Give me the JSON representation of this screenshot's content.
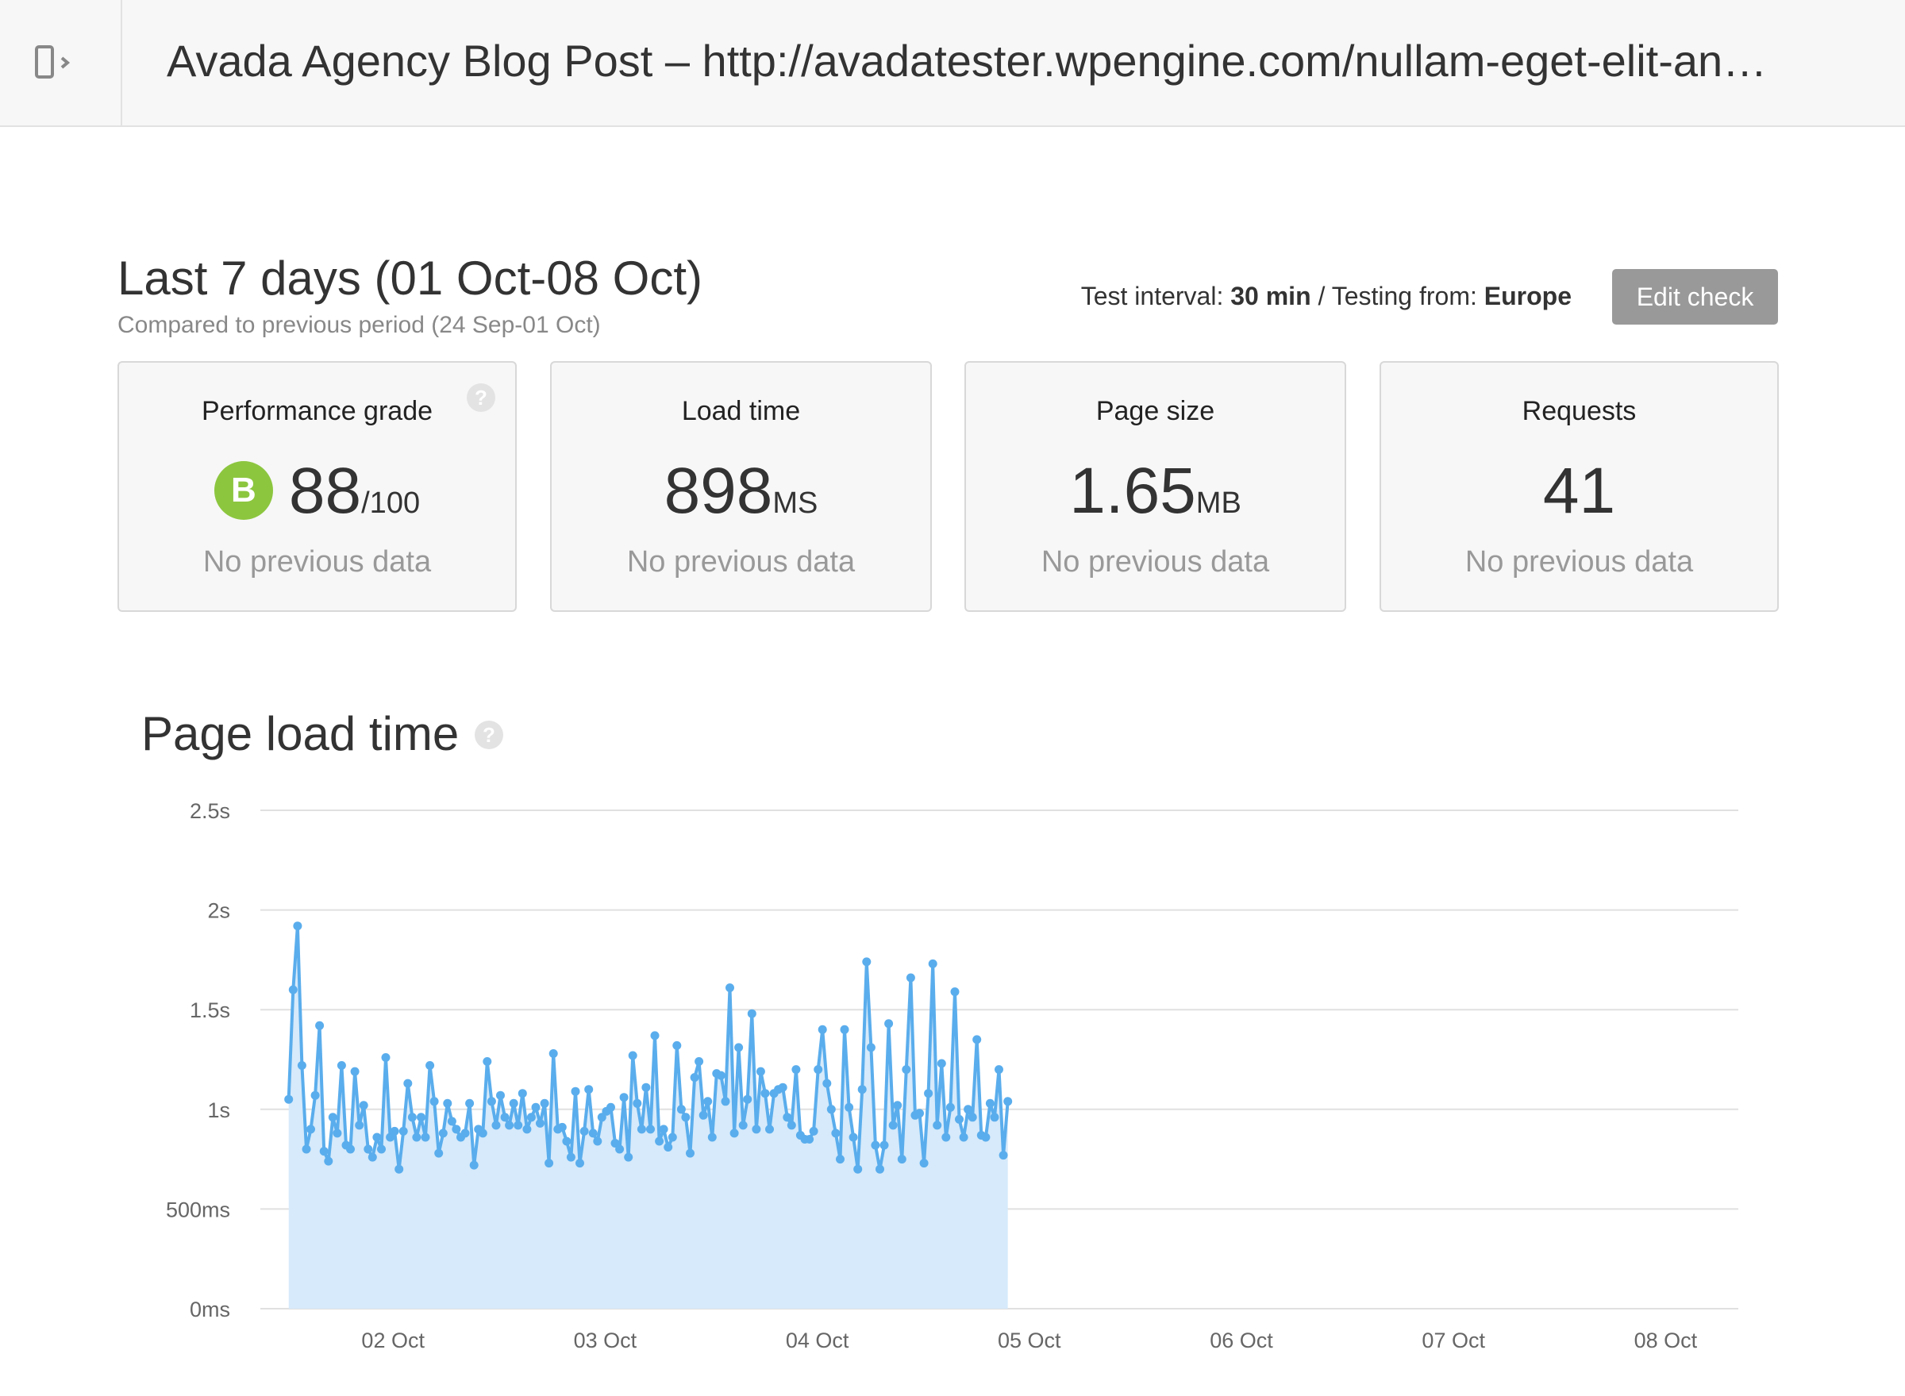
{
  "header": {
    "title": "Avada Agency Blog Post – http://avadatester.wpengine.com/nullam-eget-elit-an…",
    "toggle_icon": "sidebar-toggle-icon"
  },
  "period": {
    "title": "Last 7 days (01 Oct-08 Oct)",
    "subtitle": "Compared to previous period (24 Sep-01 Oct)"
  },
  "settings": {
    "interval_label": "Test interval:",
    "interval_value": "30 min",
    "separator": "/",
    "location_label": "Testing from:",
    "location_value": "Europe",
    "edit_button": "Edit check"
  },
  "cards": [
    {
      "label": "Performance grade",
      "grade_letter": "B",
      "value": "88",
      "unit": "/100",
      "prev": "No previous data",
      "grade_color": "#8cc63f"
    },
    {
      "label": "Load time",
      "value": "898",
      "unit": "MS",
      "prev": "No previous data"
    },
    {
      "label": "Page size",
      "value": "1.65",
      "unit": "MB",
      "prev": "No previous data"
    },
    {
      "label": "Requests",
      "value": "41",
      "unit": "",
      "prev": "No previous data"
    }
  ],
  "help_icon_glyph": "?",
  "chart_title": "Page load time",
  "colors": {
    "line": "#5aadec",
    "fill": "#d6eafb",
    "grid": "#e0e0e0"
  },
  "chart_data": {
    "type": "area",
    "title": "Page load time",
    "xlabel": "",
    "ylabel": "",
    "ylim": [
      0,
      2.5
    ],
    "y_ticks": [
      {
        "value": 0,
        "label": "0ms"
      },
      {
        "value": 0.5,
        "label": "500ms"
      },
      {
        "value": 1,
        "label": "1s"
      },
      {
        "value": 1.5,
        "label": "1.5s"
      },
      {
        "value": 2,
        "label": "2s"
      },
      {
        "value": 2.5,
        "label": "2.5s"
      }
    ],
    "x_ticks": [
      {
        "value": 1,
        "label": "02 Oct"
      },
      {
        "value": 2,
        "label": "03 Oct"
      },
      {
        "value": 3,
        "label": "04 Oct"
      },
      {
        "value": 4,
        "label": "05 Oct"
      },
      {
        "value": 5,
        "label": "06 Oct"
      },
      {
        "value": 6,
        "label": "07 Oct"
      },
      {
        "value": 7,
        "label": "08 Oct"
      }
    ],
    "xlim": [
      0,
      7.5
    ],
    "grid": true,
    "legend": "none",
    "series": [
      {
        "x_start": 0.508,
        "x_step": 0.0208,
        "values": [
          1.05,
          1.6,
          1.92,
          1.22,
          0.8,
          0.9,
          1.07,
          1.42,
          0.79,
          0.74,
          0.96,
          0.88,
          1.22,
          0.82,
          0.8,
          1.19,
          0.92,
          1.02,
          0.8,
          0.76,
          0.86,
          0.8,
          1.26,
          0.86,
          0.89,
          0.7,
          0.89,
          1.13,
          0.96,
          0.86,
          0.96,
          0.86,
          1.22,
          1.04,
          0.78,
          0.88,
          1.03,
          0.94,
          0.9,
          0.86,
          0.88,
          1.03,
          0.72,
          0.9,
          0.88,
          1.24,
          1.04,
          0.92,
          1.07,
          0.96,
          0.92,
          1.03,
          0.92,
          1.08,
          0.9,
          0.96,
          1.01,
          0.93,
          1.03,
          0.73,
          1.28,
          0.9,
          0.91,
          0.84,
          0.76,
          1.09,
          0.73,
          0.89,
          1.1,
          0.88,
          0.84,
          0.96,
          0.99,
          1.01,
          0.83,
          0.8,
          1.06,
          0.76,
          1.27,
          1.03,
          0.9,
          1.11,
          0.9,
          1.37,
          0.84,
          0.9,
          0.81,
          0.86,
          1.32,
          1.0,
          0.96,
          0.78,
          1.16,
          1.24,
          0.97,
          1.04,
          0.86,
          1.18,
          1.17,
          1.04,
          1.61,
          0.88,
          1.31,
          0.92,
          1.05,
          1.48,
          0.9,
          1.19,
          1.08,
          0.9,
          1.08,
          1.1,
          1.11,
          0.96,
          0.92,
          1.2,
          0.87,
          0.85,
          0.85,
          0.89,
          1.2,
          1.4,
          1.13,
          1.0,
          0.88,
          0.75,
          1.4,
          1.01,
          0.86,
          0.7,
          1.1,
          1.74,
          1.31,
          0.82,
          0.7,
          0.82,
          1.43,
          0.92,
          1.02,
          0.75,
          1.2,
          1.66,
          0.97,
          0.98,
          0.73,
          1.08,
          1.73,
          0.92,
          1.23,
          0.86,
          1.01,
          1.59,
          0.95,
          0.86,
          1.0,
          0.96,
          1.35,
          0.87,
          0.86,
          1.03,
          0.96,
          1.2,
          0.77,
          1.04
        ]
      }
    ]
  }
}
